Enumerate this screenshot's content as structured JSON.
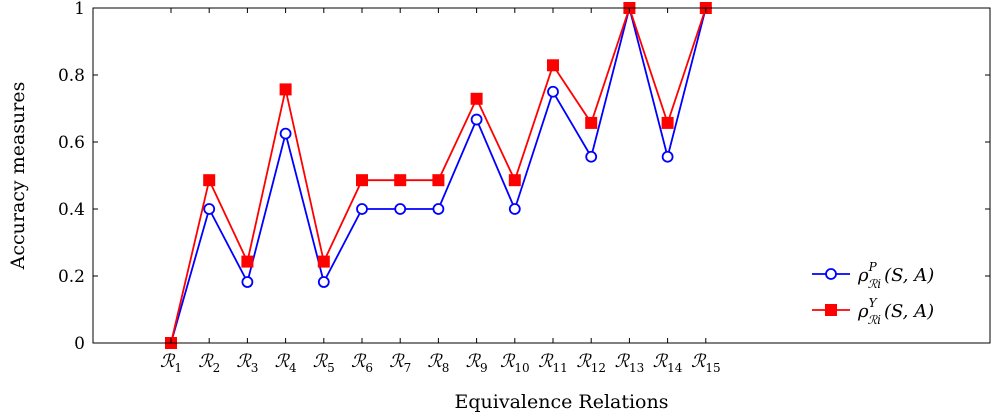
{
  "chart_data": {
    "type": "line",
    "xlabel": "Equivalence Relations",
    "ylabel": "Accuracy measures",
    "categories": [
      "R_1",
      "R_2",
      "R_3",
      "R_4",
      "R_5",
      "R_6",
      "R_7",
      "R_8",
      "R_9",
      "R_10",
      "R_11",
      "R_12",
      "R_13",
      "R_14",
      "R_15"
    ],
    "category_base": "ℛ",
    "category_subscripts": [
      "1",
      "2",
      "3",
      "4",
      "5",
      "6",
      "7",
      "8",
      "9",
      "10",
      "11",
      "12",
      "13",
      "14",
      "15"
    ],
    "ylim": [
      0,
      1
    ],
    "yticks": [
      0,
      0.2,
      0.4,
      0.6,
      0.8,
      1
    ],
    "ytick_labels": [
      "0",
      "0.2",
      "0.4",
      "0.6",
      "0.8",
      "1"
    ],
    "grid": false,
    "legend_position": "bottom-right",
    "series": [
      {
        "name": "ρ^P_{R_i}(S, A)",
        "legend_base": "ρ",
        "legend_sup": "P",
        "legend_sub": "ℛi",
        "legend_tail": "(S, A)",
        "color": "#0000ff",
        "marker": "open-circle",
        "values": [
          0,
          0.4,
          0.182,
          0.625,
          0.182,
          0.4,
          0.4,
          0.4,
          0.667,
          0.4,
          0.75,
          0.556,
          1,
          0.556,
          1
        ]
      },
      {
        "name": "ρ^Y_{R_i}(S, A)",
        "legend_base": "ρ",
        "legend_sup": "Y",
        "legend_sub": "ℛi",
        "legend_tail": "(S, A)",
        "color": "#ff0000",
        "marker": "filled-square",
        "values": [
          0,
          0.486,
          0.243,
          0.757,
          0.243,
          0.486,
          0.486,
          0.486,
          0.729,
          0.486,
          0.829,
          0.657,
          1,
          0.657,
          1
        ]
      }
    ]
  }
}
